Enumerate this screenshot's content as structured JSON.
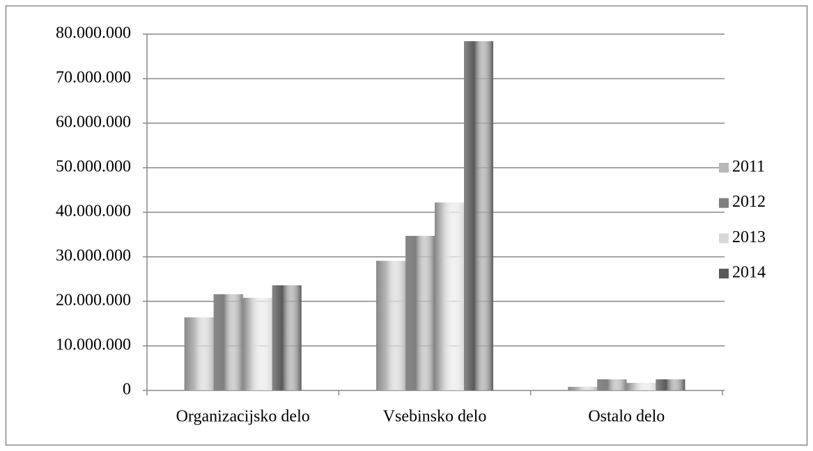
{
  "chart_data": {
    "type": "bar",
    "categories": [
      "Organizacijsko delo",
      "Vsebinsko delo",
      "Ostalo delo"
    ],
    "series": [
      {
        "name": "2011",
        "color": "#b8b8b8",
        "values": [
          16400000,
          29100000,
          800000
        ]
      },
      {
        "name": "2012",
        "color": "#7f7f7f",
        "values": [
          21600000,
          34700000,
          2500000
        ]
      },
      {
        "name": "2013",
        "color": "#d9d9d9",
        "values": [
          20800000,
          42200000,
          1700000
        ]
      },
      {
        "name": "2014",
        "color": "#595959",
        "values": [
          23600000,
          78400000,
          2500000
        ]
      }
    ],
    "ylim": [
      0,
      80000000
    ],
    "yticks": [
      0,
      {
        "value": 10000000,
        "label": "10.000.000"
      },
      {
        "value": 20000000,
        "label": "20.000.000"
      },
      {
        "value": 30000000,
        "label": "30.000.000"
      },
      {
        "value": 40000000,
        "label": "40.000.000"
      },
      {
        "value": 50000000,
        "label": "50.000.000"
      },
      {
        "value": 60000000,
        "label": "60.000.000"
      },
      {
        "value": 70000000,
        "label": "70.000.000"
      },
      {
        "value": 80000000,
        "label": "80.000.000"
      }
    ],
    "grid": true,
    "legend": "right"
  }
}
